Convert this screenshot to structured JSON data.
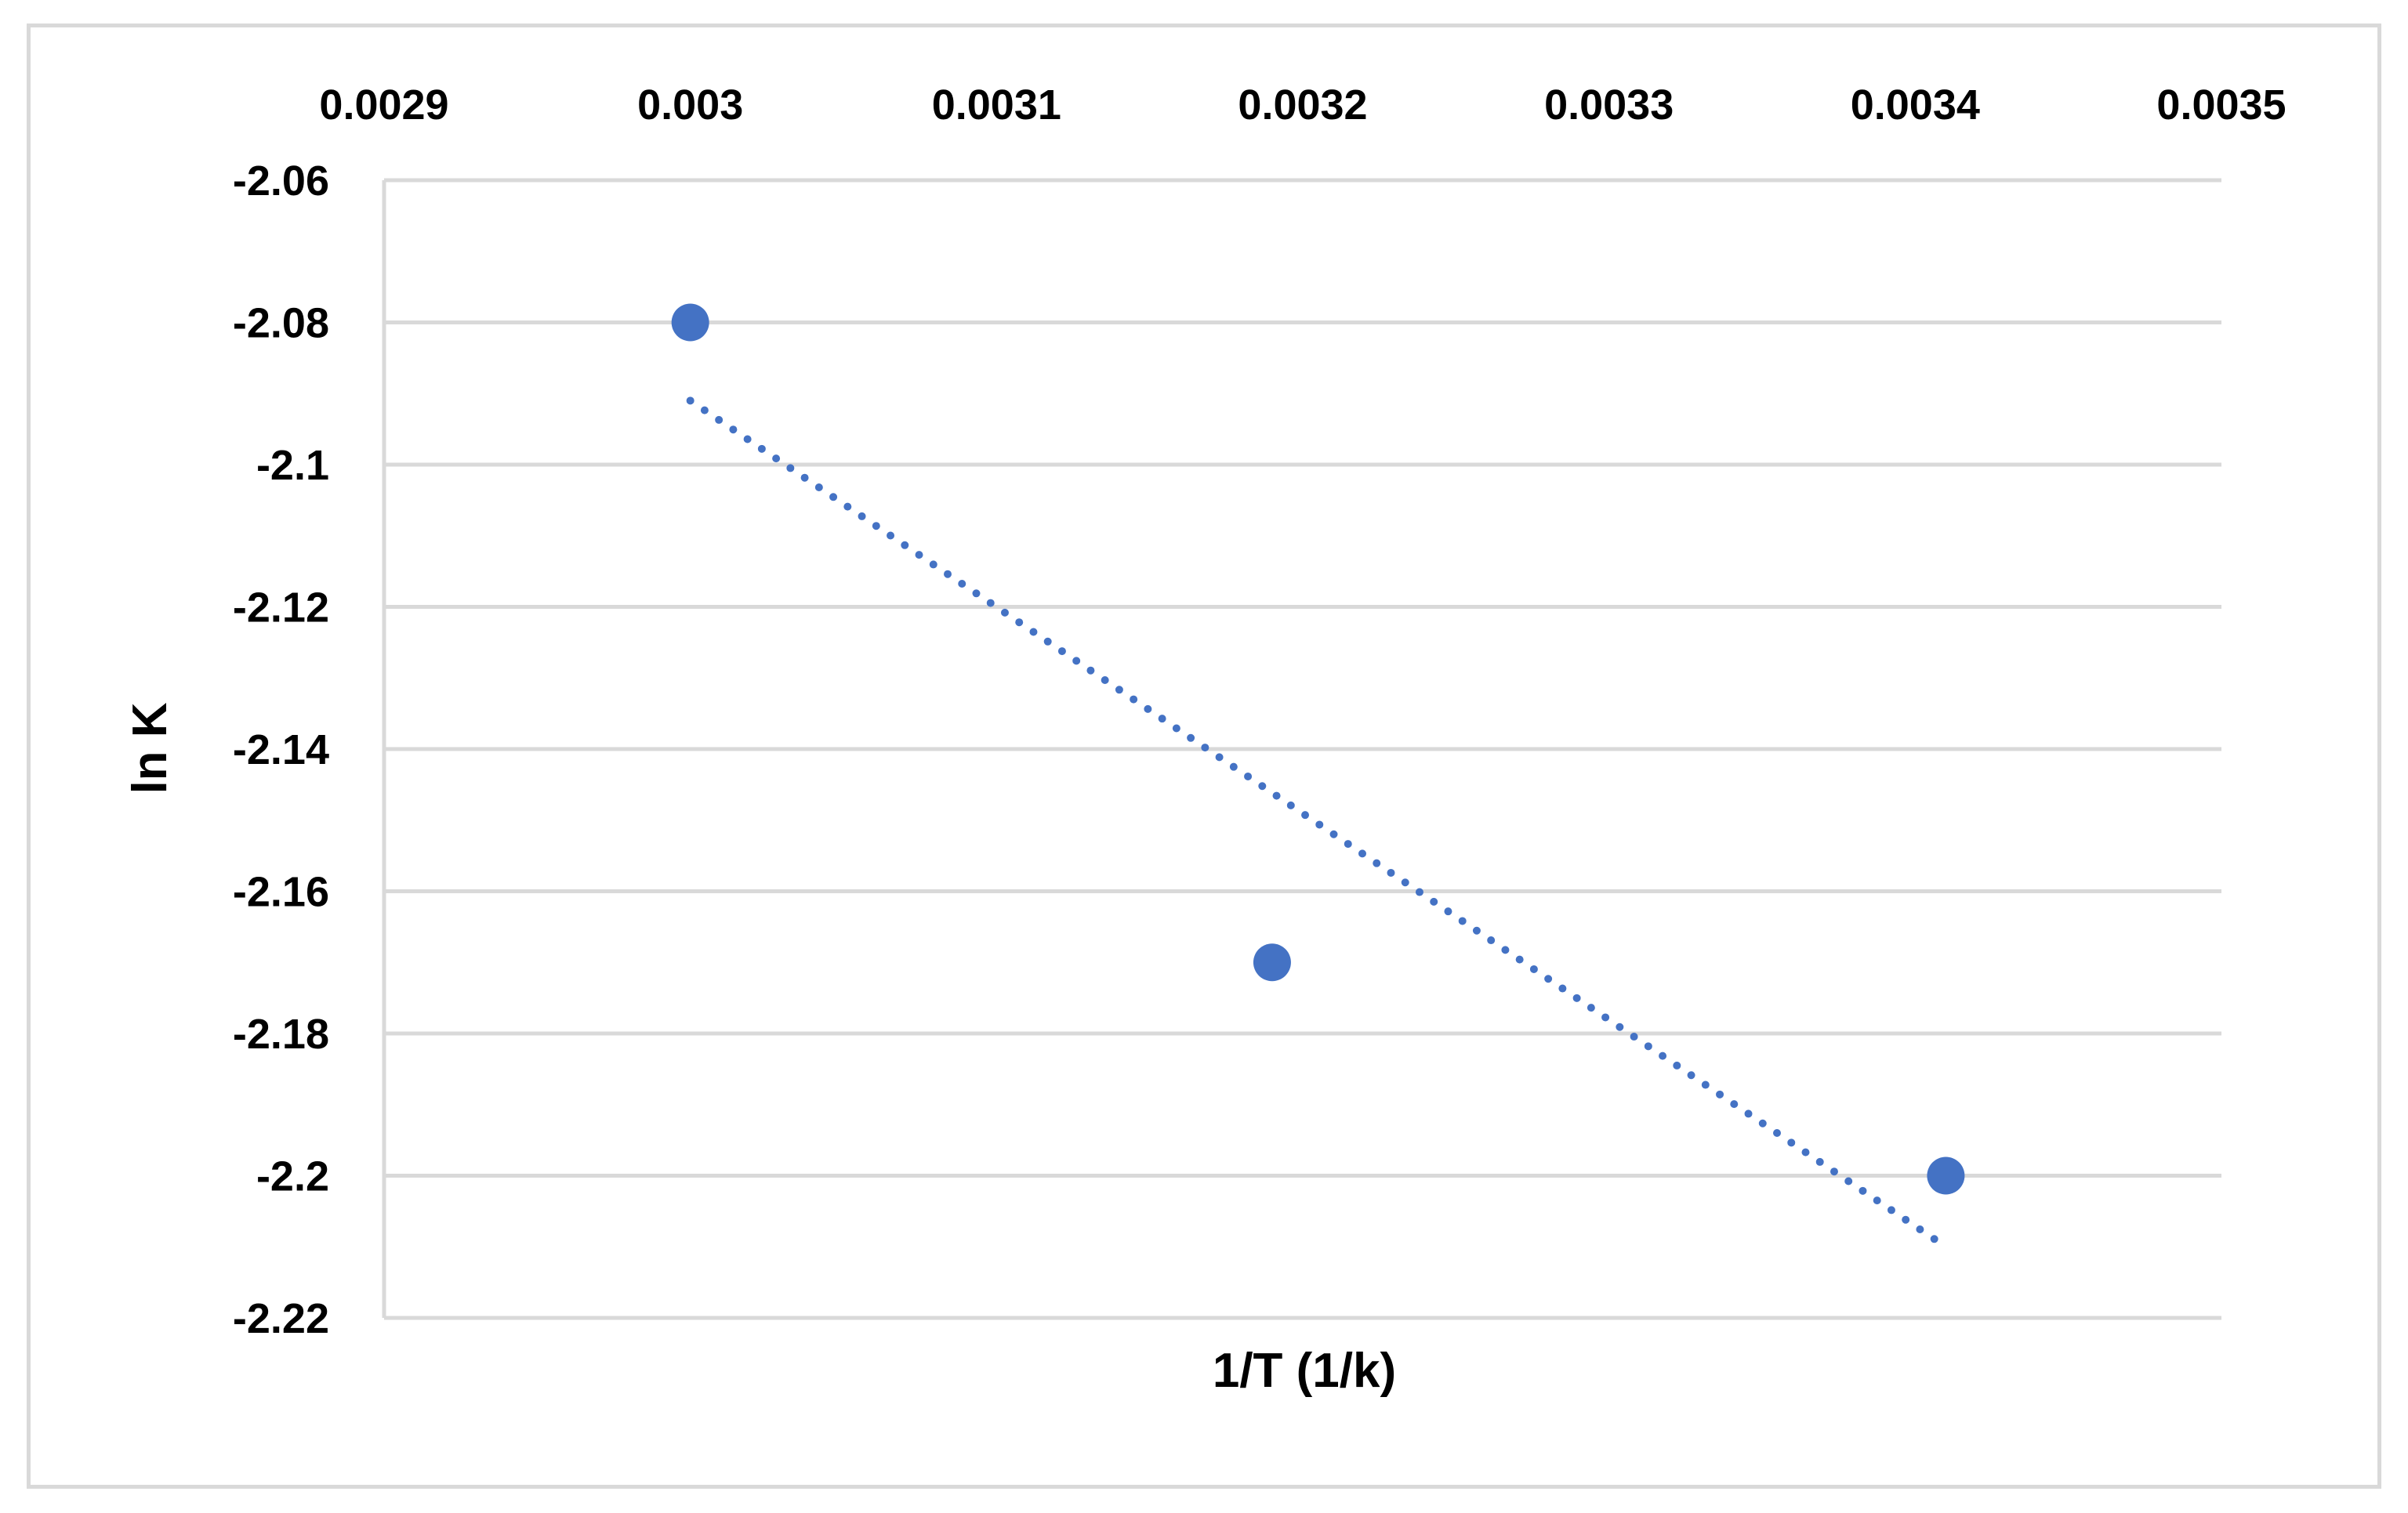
{
  "chart_data": {
    "type": "scatter",
    "xlabel": "1/T (1/k)",
    "ylabel": "ln K",
    "x_axis_position": "top",
    "xlim": [
      0.0029,
      0.0035
    ],
    "ylim": [
      -2.22,
      -2.06
    ],
    "x_ticks": [
      0.0029,
      0.003,
      0.0031,
      0.0032,
      0.0033,
      0.0034,
      0.0035
    ],
    "x_tick_labels": [
      "0.0029",
      "0.003",
      "0.0031",
      "0.0032",
      "0.0033",
      "0.0034",
      "0.0035"
    ],
    "y_ticks": [
      -2.06,
      -2.08,
      -2.1,
      -2.12,
      -2.14,
      -2.16,
      -2.18,
      -2.2,
      -2.22
    ],
    "y_tick_labels": [
      "-2.06",
      "-2.08",
      "-2.1",
      "-2.12",
      "-2.14",
      "-2.16",
      "-2.18",
      "-2.2",
      "-2.22"
    ],
    "grid": {
      "horizontal": true,
      "vertical": false
    },
    "series": [
      {
        "points": [
          {
            "x": 0.003,
            "y": -2.08
          },
          {
            "x": 0.00319,
            "y": -2.17
          },
          {
            "x": 0.00341,
            "y": -2.2
          }
        ],
        "color": "#4472c4"
      }
    ],
    "trendline": {
      "style": "dotted",
      "color": "#4472c4",
      "from": {
        "x": 0.003,
        "y": -2.091
      },
      "to": {
        "x": 0.00341,
        "y": -2.21
      }
    }
  }
}
